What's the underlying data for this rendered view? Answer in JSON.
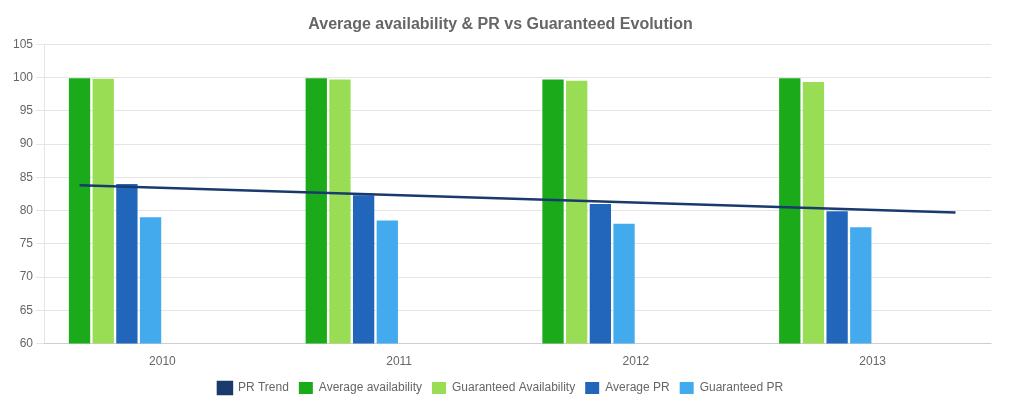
{
  "chart_data": {
    "type": "bar",
    "title": "Average availability & PR vs Guaranteed Evolution",
    "categories": [
      "2010",
      "2011",
      "2012",
      "2013"
    ],
    "series": [
      {
        "name": "Average availability",
        "color": "#1aaa1a",
        "values": [
          99.9,
          99.9,
          99.7,
          99.9
        ]
      },
      {
        "name": "Guaranteed Availability",
        "color": "#99dd55",
        "values": [
          99.8,
          99.7,
          99.5,
          99.3
        ]
      },
      {
        "name": "Average PR",
        "color": "#2266bb",
        "values": [
          84.0,
          82.3,
          81.0,
          79.9
        ]
      },
      {
        "name": "Guaranteed PR",
        "color": "#44aaee",
        "values": [
          79.0,
          78.5,
          78.0,
          77.5
        ]
      },
      {
        "name": "PR Trend",
        "type": "line",
        "color": "#1a3a6e",
        "x": [
          -0.35,
          3.35
        ],
        "values": [
          83.8,
          79.7
        ]
      }
    ],
    "ylim": [
      60,
      105
    ],
    "yticks": [
      60,
      65,
      70,
      75,
      80,
      85,
      90,
      95,
      100,
      105
    ],
    "grid": true,
    "legend": "bottom"
  }
}
